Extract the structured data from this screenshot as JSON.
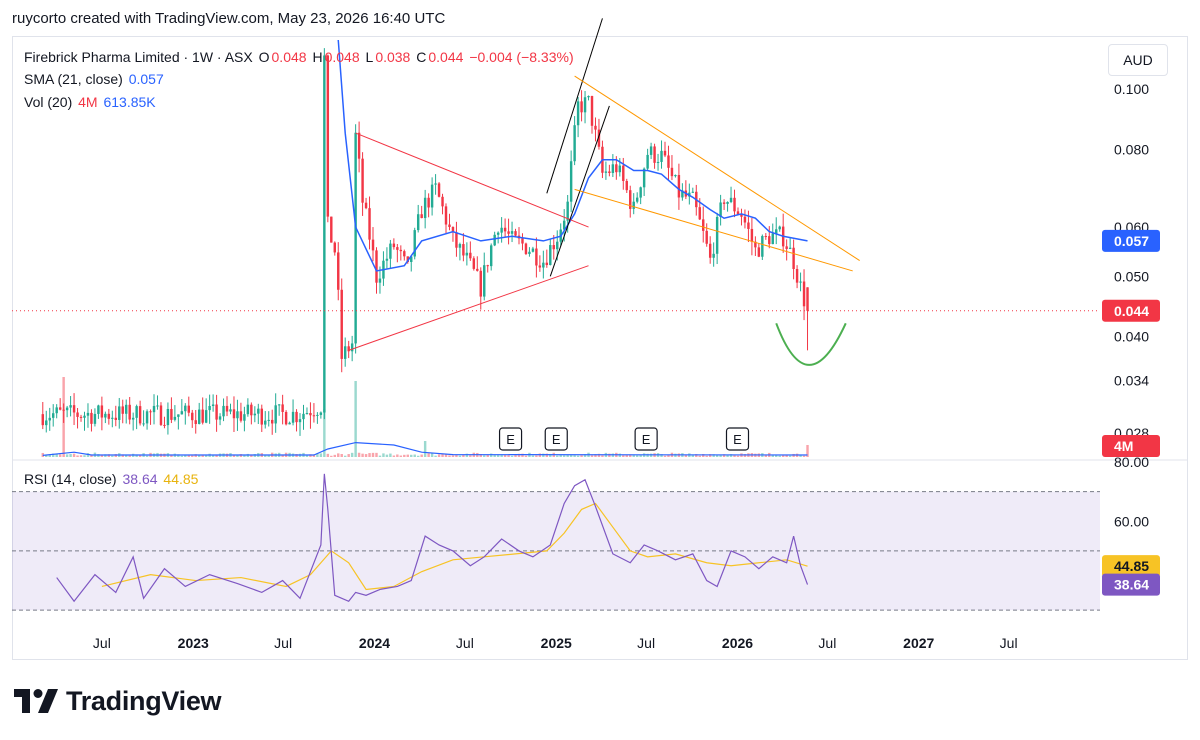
{
  "header": {
    "attribution": "ruycorto created with TradingView.com, May 23, 2026 16:40 UTC"
  },
  "legend": {
    "symbol": "Firebrick Pharma Limited · 1W · ASX",
    "o_label": "O",
    "o_value": "0.048",
    "h_label": "H",
    "h_value": "0.048",
    "l_label": "L",
    "l_value": "0.038",
    "c_label": "C",
    "c_value": "0.044",
    "change": "−0.004 (−8.33%)",
    "sma_label": "SMA (21, close)",
    "sma_value": "0.057",
    "vol_label": "Vol (20)",
    "vol_value": "4M",
    "vol_ma": "613.85K",
    "rsi_label": "RSI (14, close)",
    "rsi_value": "38.64",
    "rsi_ma": "44.85"
  },
  "currency_button": "AUD",
  "brand": {
    "name": "TradingView"
  },
  "colors": {
    "up": "#22ab94",
    "down": "#f23645",
    "sma": "#2962ff",
    "rsi": "#7e57c2",
    "rsi_ma": "#f7c325",
    "triangle": "#f23645",
    "wedge": "#ff9800",
    "channel": "#000000",
    "cup": "#4caf50"
  },
  "chart_data": [
    {
      "type": "candlestick",
      "title": "Firebrick Pharma Limited · 1W · ASX",
      "scale": "log",
      "y_ticks": [
        "0.100",
        "0.080",
        "0.060",
        "0.050",
        "0.040",
        "0.034",
        "0.028"
      ],
      "x_ticks": [
        "Jul",
        "2023",
        "Jul",
        "2024",
        "Jul",
        "2025",
        "Jul",
        "2026",
        "Jul",
        "2027",
        "Jul"
      ],
      "price_labels": {
        "sma": "0.057",
        "last": "0.044",
        "volume": "4M"
      },
      "earnings_marker": "E",
      "earnings": [
        "2024-10",
        "2025-01",
        "2025-07",
        "2026-01"
      ],
      "ohlc_last": {
        "open": 0.048,
        "high": 0.048,
        "low": 0.038,
        "close": 0.044
      },
      "pivots": [
        [
          "2022-04-01",
          0.03
        ],
        [
          "2022-06-01",
          0.03
        ],
        [
          "2022-08-01",
          0.03
        ],
        [
          "2022-10-01",
          0.03
        ],
        [
          "2022-12-01",
          0.03
        ],
        [
          "2023-02-01",
          0.03
        ],
        [
          "2023-04-01",
          0.03
        ],
        [
          "2023-06-01",
          0.03
        ],
        [
          "2023-08-01",
          0.03
        ],
        [
          "2023-09-15",
          0.031
        ],
        [
          "2023-09-22",
          0.112
        ],
        [
          "2023-09-29",
          0.06
        ],
        [
          "2023-10-13",
          0.055
        ],
        [
          "2023-10-27",
          0.037
        ],
        [
          "2023-11-17",
          0.039
        ],
        [
          "2023-11-24",
          0.084
        ],
        [
          "2023-12-08",
          0.066
        ],
        [
          "2024-01-05",
          0.05
        ],
        [
          "2024-02-09",
          0.056
        ],
        [
          "2024-03-08",
          0.051
        ],
        [
          "2024-04-05",
          0.064
        ],
        [
          "2024-05-03",
          0.069
        ],
        [
          "2024-06-07",
          0.057
        ],
        [
          "2024-07-05",
          0.053
        ],
        [
          "2024-08-02",
          0.048
        ],
        [
          "2024-09-06",
          0.061
        ],
        [
          "2024-10-04",
          0.057
        ],
        [
          "2024-11-01",
          0.056
        ],
        [
          "2024-12-06",
          0.053
        ],
        [
          "2025-01-03",
          0.058
        ],
        [
          "2025-01-24",
          0.065
        ],
        [
          "2025-02-14",
          0.094
        ],
        [
          "2025-03-07",
          0.095
        ],
        [
          "2025-04-04",
          0.073
        ],
        [
          "2025-05-02",
          0.075
        ],
        [
          "2025-06-06",
          0.064
        ],
        [
          "2025-07-04",
          0.079
        ],
        [
          "2025-08-01",
          0.078
        ],
        [
          "2025-09-05",
          0.068
        ],
        [
          "2025-10-03",
          0.066
        ],
        [
          "2025-11-07",
          0.053
        ],
        [
          "2025-12-05",
          0.067
        ],
        [
          "2026-01-09",
          0.063
        ],
        [
          "2026-02-06",
          0.055
        ],
        [
          "2026-03-06",
          0.058
        ],
        [
          "2026-04-03",
          0.058
        ],
        [
          "2026-04-24",
          0.053
        ],
        [
          "2026-05-08",
          0.048
        ],
        [
          "2026-05-22",
          0.044
        ]
      ],
      "sma_21": [
        [
          "2023-10-20",
          0.14
        ],
        [
          "2023-11-03",
          0.085
        ],
        [
          "2023-11-24",
          0.06
        ],
        [
          "2024-01-05",
          0.051
        ],
        [
          "2024-03-01",
          0.052
        ],
        [
          "2024-04-05",
          0.057
        ],
        [
          "2024-06-07",
          0.059
        ],
        [
          "2024-08-02",
          0.057
        ],
        [
          "2024-10-04",
          0.058
        ],
        [
          "2024-12-06",
          0.057
        ],
        [
          "2025-01-10",
          0.058
        ],
        [
          "2025-02-07",
          0.063
        ],
        [
          "2025-03-07",
          0.072
        ],
        [
          "2025-04-04",
          0.077
        ],
        [
          "2025-05-02",
          0.077
        ],
        [
          "2025-06-06",
          0.074
        ],
        [
          "2025-07-04",
          0.074
        ],
        [
          "2025-08-01",
          0.073
        ],
        [
          "2025-09-05",
          0.069
        ],
        [
          "2025-10-03",
          0.067
        ],
        [
          "2025-11-07",
          0.064
        ],
        [
          "2025-12-05",
          0.062
        ],
        [
          "2026-01-09",
          0.063
        ],
        [
          "2026-02-06",
          0.062
        ],
        [
          "2026-03-06",
          0.059
        ],
        [
          "2026-04-03",
          0.058
        ],
        [
          "2026-05-22",
          0.057
        ]
      ],
      "volume_spikes": [
        [
          "2022-04-15",
          2.0
        ],
        [
          "2023-09-22",
          1.2
        ],
        [
          "2023-11-24",
          1.9
        ],
        [
          "2024-04-12",
          0.4
        ],
        [
          "2026-05-22",
          0.3
        ]
      ],
      "drawings": {
        "triangle": [
          [
            [
              "2023-11-24",
              0.085
            ],
            [
              "2025-03-07",
              0.06
            ]
          ],
          [
            [
              "2023-11-10",
              0.038
            ],
            [
              "2025-03-07",
              0.052
            ]
          ]
        ],
        "channel": [
          [
            [
              "2024-12-13",
              0.068
            ],
            [
              "2025-04-04",
              0.13
            ]
          ],
          [
            [
              "2024-12-20",
              0.05
            ],
            [
              "2025-04-18",
              0.094
            ]
          ]
        ],
        "wedge": [
          [
            [
              "2025-02-07",
              0.105
            ],
            [
              "2026-09-04",
              0.053
            ]
          ],
          [
            [
              "2025-02-07",
              0.069
            ],
            [
              "2026-08-21",
              0.051
            ]
          ]
        ],
        "cup": [
          [
            "2026-03-20",
            0.042
          ],
          [
            "2026-05-22",
            0.036
          ],
          [
            "2026-08-07",
            0.042
          ]
        ]
      }
    },
    {
      "type": "line",
      "title": "RSI (14, close)",
      "y_ticks": [
        "80.00",
        "60.00"
      ],
      "ylim": [
        25,
        80
      ],
      "bands": [
        70,
        50,
        30
      ],
      "price_labels": {
        "rsi_ma": "44.85",
        "rsi": "38.64"
      },
      "series": [
        {
          "name": "RSI",
          "values": [
            [
              "2022-04-01",
              41
            ],
            [
              "2022-05-06",
              33
            ],
            [
              "2022-06-17",
              42
            ],
            [
              "2022-07-29",
              36
            ],
            [
              "2022-09-02",
              48
            ],
            [
              "2022-09-23",
              34
            ],
            [
              "2022-11-04",
              44
            ],
            [
              "2022-12-16",
              38
            ],
            [
              "2023-02-03",
              42
            ],
            [
              "2023-03-31",
              39
            ],
            [
              "2023-05-19",
              36
            ],
            [
              "2023-06-30",
              40
            ],
            [
              "2023-08-04",
              34
            ],
            [
              "2023-09-15",
              52
            ],
            [
              "2023-09-22",
              76
            ],
            [
              "2023-09-29",
              64
            ],
            [
              "2023-10-13",
              35
            ],
            [
              "2023-11-10",
              33
            ],
            [
              "2023-11-24",
              36
            ],
            [
              "2023-12-15",
              35
            ],
            [
              "2024-01-12",
              37
            ],
            [
              "2024-02-16",
              38
            ],
            [
              "2024-03-15",
              40
            ],
            [
              "2024-04-12",
              55
            ],
            [
              "2024-05-10",
              52
            ],
            [
              "2024-06-07",
              50
            ],
            [
              "2024-07-12",
              45
            ],
            [
              "2024-08-09",
              48
            ],
            [
              "2024-09-13",
              54
            ],
            [
              "2024-10-18",
              50
            ],
            [
              "2024-11-15",
              48
            ],
            [
              "2024-12-20",
              52
            ],
            [
              "2025-01-17",
              66
            ],
            [
              "2025-02-07",
              72
            ],
            [
              "2025-02-28",
              74
            ],
            [
              "2025-03-21",
              65
            ],
            [
              "2025-04-25",
              49
            ],
            [
              "2025-05-30",
              46
            ],
            [
              "2025-06-27",
              52
            ],
            [
              "2025-07-25",
              50
            ],
            [
              "2025-08-29",
              47
            ],
            [
              "2025-10-03",
              49
            ],
            [
              "2025-10-31",
              40
            ],
            [
              "2025-11-21",
              38
            ],
            [
              "2025-12-19",
              50
            ],
            [
              "2026-01-16",
              48
            ],
            [
              "2026-02-13",
              44
            ],
            [
              "2026-03-13",
              48
            ],
            [
              "2026-04-10",
              46
            ],
            [
              "2026-04-24",
              55
            ],
            [
              "2026-05-08",
              45
            ],
            [
              "2026-05-22",
              38.64
            ]
          ]
        },
        {
          "name": "RSI-based MA",
          "values": [
            [
              "2022-07-01",
              38
            ],
            [
              "2022-10-07",
              42
            ],
            [
              "2023-01-06",
              40
            ],
            [
              "2023-04-07",
              41
            ],
            [
              "2023-07-07",
              38
            ],
            [
              "2023-08-25",
              42
            ],
            [
              "2023-10-06",
              50
            ],
            [
              "2023-11-10",
              46
            ],
            [
              "2023-12-15",
              37
            ],
            [
              "2024-02-09",
              38
            ],
            [
              "2024-04-05",
              43
            ],
            [
              "2024-06-07",
              47
            ],
            [
              "2024-08-09",
              48
            ],
            [
              "2024-10-11",
              49
            ],
            [
              "2024-12-13",
              50
            ],
            [
              "2025-01-17",
              56
            ],
            [
              "2025-02-21",
              64
            ],
            [
              "2025-03-21",
              66
            ],
            [
              "2025-04-25",
              58
            ],
            [
              "2025-05-30",
              50
            ],
            [
              "2025-07-04",
              48
            ],
            [
              "2025-08-29",
              49
            ],
            [
              "2025-10-31",
              46
            ],
            [
              "2025-12-19",
              45
            ],
            [
              "2026-02-13",
              46
            ],
            [
              "2026-04-10",
              47
            ],
            [
              "2026-05-22",
              44.85
            ]
          ]
        }
      ]
    }
  ]
}
